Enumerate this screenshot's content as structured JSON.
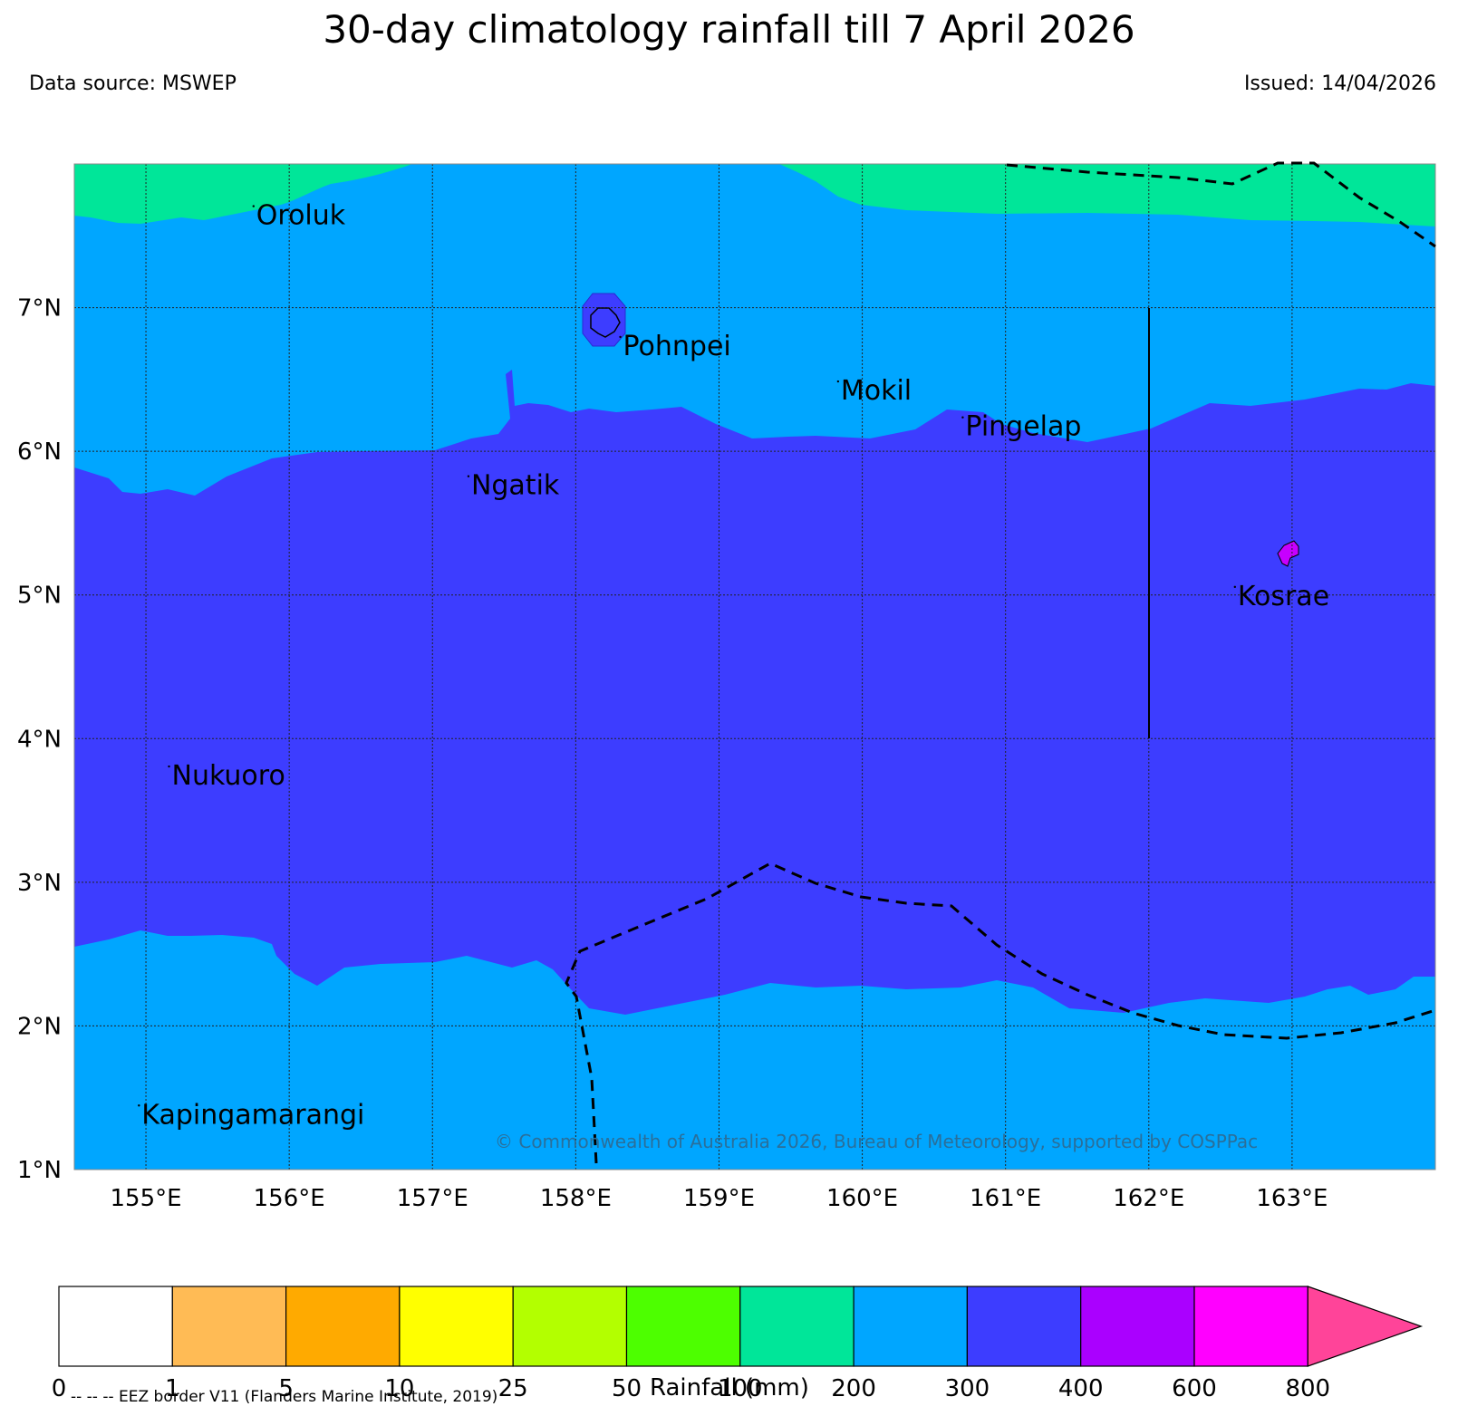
{
  "header": {
    "title": "30-day climatology rainfall till 7 April 2026",
    "data_source": "Data source: MSWEP",
    "issued": "Issued: 14/04/2026"
  },
  "axes": {
    "lat_labels": [
      "7°N",
      "6°N",
      "5°N",
      "4°N",
      "3°N",
      "2°N",
      "1°N"
    ],
    "lon_labels": [
      "155°E",
      "156°E",
      "157°E",
      "158°E",
      "159°E",
      "160°E",
      "161°E",
      "162°E",
      "163°E"
    ]
  },
  "islands": [
    {
      "name": "Oroluk",
      "lon": 155.77,
      "lat": 7.58
    },
    {
      "name": "Pohnpei",
      "lon": 158.33,
      "lat": 6.67
    },
    {
      "name": "Mokil",
      "lon": 159.85,
      "lat": 6.36
    },
    {
      "name": "Pingelap",
      "lon": 160.72,
      "lat": 6.11
    },
    {
      "name": "Ngatik",
      "lon": 157.27,
      "lat": 5.7
    },
    {
      "name": "Kosrae",
      "lon": 162.62,
      "lat": 4.93
    },
    {
      "name": "Nukuoro",
      "lon": 155.18,
      "lat": 3.68
    },
    {
      "name": "Kapingamarangi",
      "lon": 154.97,
      "lat": 1.32
    }
  ],
  "copyright": "© Commonwealth of Australia 2026, Bureau of Meteorology, supported by COSPPac",
  "colorbar": {
    "label": "Rainfall (mm)",
    "ticks": [
      "0",
      "1",
      "5",
      "10",
      "25",
      "50",
      "100",
      "200",
      "300",
      "400",
      "600",
      "800"
    ],
    "colors": [
      "#ffffff",
      "#ffbb55",
      "#ffaa00",
      "#ffff00",
      "#b3ff00",
      "#4dff00",
      "#00e699",
      "#00a6ff",
      "#3d3dff",
      "#aa00ff",
      "#ff00ff",
      "#ff4499"
    ]
  },
  "eez_note": "-- -- -- EEZ border V11 (Flanders Marine Institute, 2019)",
  "chart_data": {
    "type": "heatmap",
    "title": "30-day climatology rainfall till 7 April 2026",
    "variable": "Rainfall (mm)",
    "lon_range": [
      154.5,
      164.0
    ],
    "lat_range": [
      1.0,
      8.0
    ],
    "lon_ticks": [
      155,
      156,
      157,
      158,
      159,
      160,
      161,
      162,
      163
    ],
    "lat_ticks": [
      1,
      2,
      3,
      4,
      5,
      6,
      7
    ],
    "levels": [
      0,
      1,
      5,
      10,
      25,
      50,
      100,
      200,
      300,
      400,
      600,
      800
    ],
    "zones": [
      {
        "range": "100-200",
        "region": "north of ~7.6°N"
      },
      {
        "range": "200-300",
        "region": "~6.1°N to ~7.6°N and south of ~2.3°N"
      },
      {
        "range": "300-400",
        "region": "~2.3°N to ~6.2°N band, also around Pohnpei"
      },
      {
        "range": "400-600",
        "region": "Kosrae island"
      }
    ]
  }
}
